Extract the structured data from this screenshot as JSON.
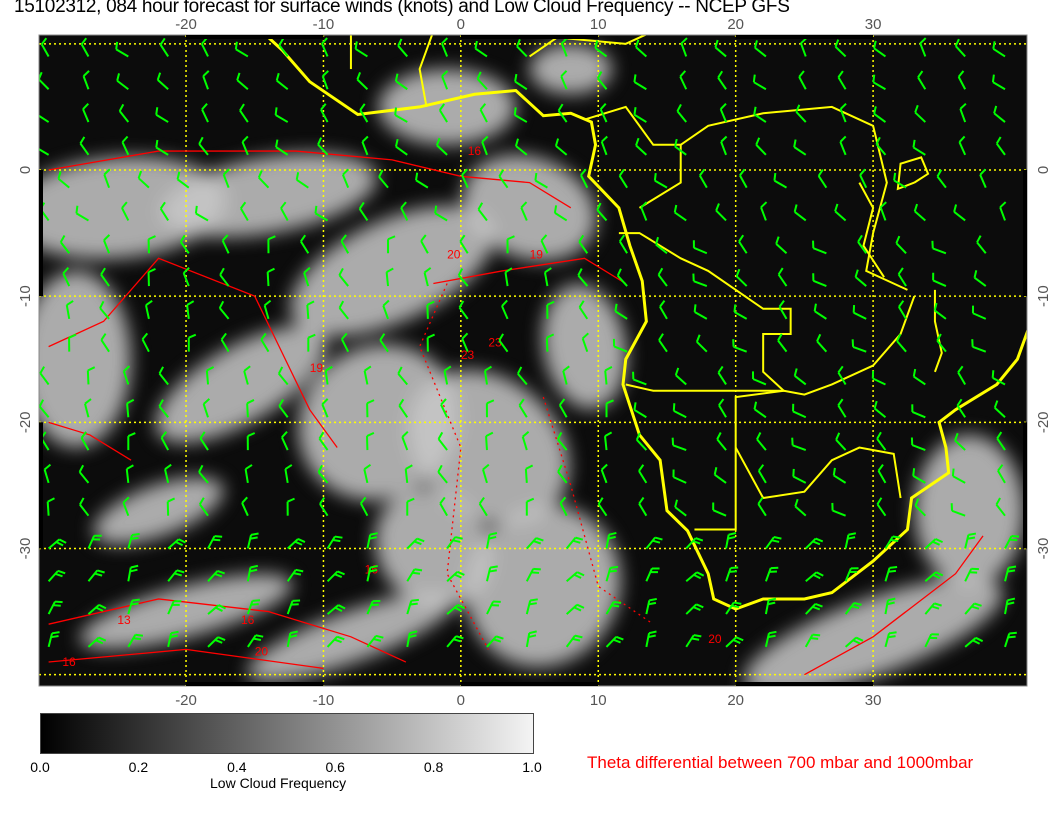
{
  "title": "15102312, 084 hour forecast for surface winds (knots) and Low Cloud Frequency -- NCEP GFS",
  "map": {
    "lon_range": [
      -30.7,
      41.2
    ],
    "lat_range": [
      -40.9,
      10.7
    ],
    "lon_ticks": [
      "-20",
      "-10",
      "0",
      "10",
      "20",
      "30"
    ],
    "lat_ticks": [
      "0",
      "-10",
      "-20",
      "-30"
    ],
    "colors": {
      "coastline": "#ffff00",
      "wind_barbs": "#00ff00",
      "theta_contours": "#ff0000",
      "gridlines": "#ffff00"
    },
    "contour_labels": [
      "16",
      "19",
      "20",
      "19",
      "23",
      "23",
      "16",
      "13",
      "16",
      "20",
      "20",
      "16"
    ]
  },
  "colorbar": {
    "title": "Low Cloud Frequency",
    "ticks": [
      "0.0",
      "0.2",
      "0.4",
      "0.6",
      "0.8",
      "1.0"
    ],
    "range": [
      0.0,
      1.0
    ],
    "colormap": "black-to-white"
  },
  "legend_note": "Theta differential between 700 mbar and 1000mbar"
}
